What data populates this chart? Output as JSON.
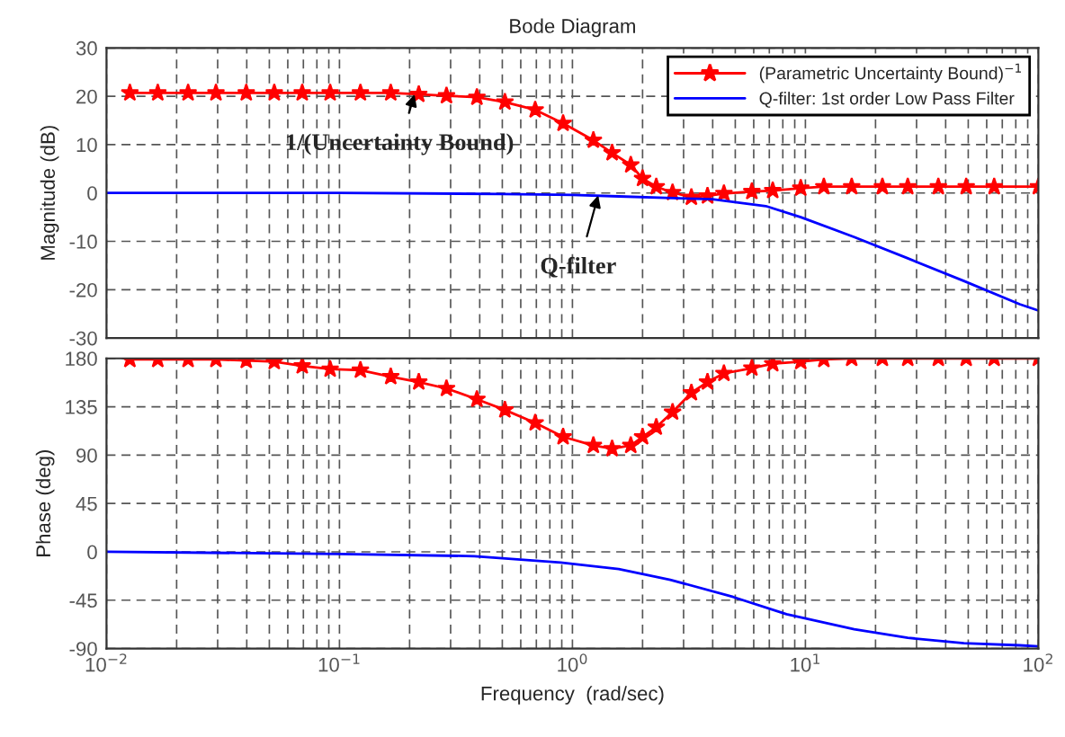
{
  "chart_data": [
    {
      "type": "line",
      "title": "Bode Diagram",
      "ylabel": "Magnitude (dB)",
      "log": "x",
      "grid": true,
      "legend": "top right",
      "tick_labels": "y",
      "xlim": [
        0.01,
        100
      ],
      "ylim": [
        -30,
        30
      ],
      "yticks": [
        -30,
        -20,
        -10,
        0,
        10,
        20,
        30
      ],
      "series": [
        {
          "name": "(Parametric Uncertainty Bound)$^{−1}$",
          "color": "#ff0000",
          "marker": "star",
          "x": [
            0.0126,
            0.0166,
            0.0224,
            0.0295,
            0.0398,
            0.0525,
            0.0692,
            0.0912,
            0.123,
            0.166,
            0.219,
            0.288,
            0.389,
            0.513,
            0.692,
            0.912,
            1.23,
            1.48,
            1.78,
            2.0,
            2.29,
            2.69,
            3.24,
            3.8,
            4.47,
            5.89,
            7.24,
            9.55,
            12.0,
            15.8,
            21.4,
            27.5,
            37.2,
            49.0,
            64.6,
            100
          ],
          "values": [
            20.7,
            20.7,
            20.7,
            20.7,
            20.7,
            20.7,
            20.7,
            20.7,
            20.7,
            20.7,
            20.4,
            20.1,
            19.8,
            18.8,
            17.2,
            14.4,
            10.9,
            8.3,
            5.8,
            3.0,
            1.3,
            0.1,
            -0.9,
            -0.6,
            -0.1,
            0.3,
            0.5,
            1.0,
            1.3,
            1.3,
            1.3,
            1.3,
            1.3,
            1.3,
            1.3,
            1.3
          ]
        },
        {
          "name": "Q-filter: 1st order Low Pass Filter",
          "color": "#0000ff",
          "x": [
            0.01,
            0.1,
            0.5,
            1,
            1.58,
            2.51,
            3.98,
            6.76,
            9.55,
            16.2,
            27.5,
            47.9,
            83.2,
            100
          ],
          "values": [
            0,
            0,
            -0.2,
            -0.4,
            -0.7,
            -1.0,
            -1.3,
            -2.7,
            -5.0,
            -9.1,
            -13.5,
            -18.2,
            -23,
            -24.3
          ]
        }
      ],
      "annotations": [
        {
          "text": "1/(Uncertainty Bound)",
          "x": 0.21,
          "y": 20.4
        },
        {
          "text": "Q-filter",
          "x": 1.29,
          "y": -0.5
        }
      ]
    },
    {
      "type": "line",
      "xlabel": "Frequency  (rad/sec)",
      "ylabel": "Phase (deg)",
      "log": "x",
      "grid": true,
      "xlim": [
        0.01,
        100
      ],
      "xticks": [
        {
          "value": 0.01,
          "label": "10$^{−2}$"
        },
        {
          "value": 0.1,
          "label": "10$^{−1}$"
        },
        {
          "value": 1,
          "label": "10$^{0}$"
        },
        {
          "value": 10,
          "label": "10$^{1}$"
        },
        {
          "value": 100,
          "label": "10$^{2}$"
        }
      ],
      "ylim": [
        -90,
        180
      ],
      "yticks": [
        -90,
        -45,
        0,
        45,
        90,
        135,
        180
      ],
      "series": [
        {
          "color": "#ff0000",
          "marker": "star",
          "x": [
            0.0126,
            0.0166,
            0.0224,
            0.0295,
            0.0398,
            0.0525,
            0.0692,
            0.0912,
            0.123,
            0.166,
            0.219,
            0.288,
            0.389,
            0.513,
            0.692,
            0.912,
            1.23,
            1.48,
            1.78,
            2.0,
            2.29,
            2.69,
            3.24,
            3.8,
            4.47,
            5.89,
            7.24,
            9.55,
            12.0,
            15.8,
            21.4,
            27.5,
            37.2,
            49.0,
            64.6,
            100
          ],
          "values": [
            179,
            179,
            179,
            179,
            178,
            177,
            173,
            170,
            169,
            163,
            158,
            152,
            142,
            132,
            120,
            107,
            99,
            96,
            99,
            107,
            116,
            130,
            148,
            158,
            166,
            171,
            175,
            177,
            179,
            180,
            180,
            180,
            180,
            180,
            180,
            180
          ]
        },
        {
          "color": "#0000ff",
          "x": [
            0.01,
            0.1,
            0.38,
            0.89,
            1.58,
            2.63,
            4.9,
            8.3,
            16.2,
            27.5,
            47.9,
            83.2,
            100
          ],
          "values": [
            0,
            -2,
            -4,
            -10,
            -16,
            -26,
            -42,
            -58,
            -72,
            -80,
            -85,
            -87,
            -88
          ]
        }
      ]
    }
  ]
}
